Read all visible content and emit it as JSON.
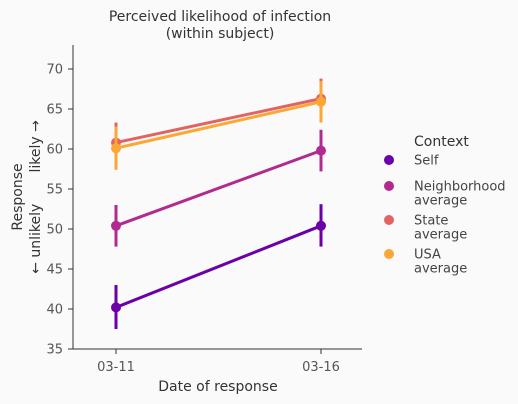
{
  "chart_data": {
    "type": "line",
    "title_lines": [
      "Perceived likelihood of infection",
      "(within subject)"
    ],
    "xlabel": "Date of response",
    "ylabel_lines": [
      "Response",
      "← unlikely       likely →"
    ],
    "categories": [
      "03-11",
      "03-16"
    ],
    "ylim": [
      35,
      73
    ],
    "yticks": [
      35,
      40,
      45,
      50,
      55,
      60,
      65,
      70
    ],
    "grid": false,
    "legend_title": "Context",
    "legend_position": "right",
    "series": [
      {
        "name": "Self",
        "label_lines": [
          "Self"
        ],
        "color": "#6a00a8",
        "values": [
          40.2,
          50.4
        ],
        "ci_low": [
          37.5,
          47.8
        ],
        "ci_high": [
          43.0,
          53.1
        ]
      },
      {
        "name": "Neighborhood average",
        "label_lines": [
          "Neighborhood",
          "average"
        ],
        "color": "#b12a90",
        "values": [
          50.4,
          59.8
        ],
        "ci_low": [
          47.8,
          57.2
        ],
        "ci_high": [
          53.0,
          62.4
        ]
      },
      {
        "name": "State average",
        "label_lines": [
          "State",
          "average"
        ],
        "color": "#e16462",
        "values": [
          60.8,
          66.3
        ],
        "ci_low": [
          58.3,
          63.8
        ],
        "ci_high": [
          63.3,
          68.8
        ]
      },
      {
        "name": "USA average",
        "label_lines": [
          "USA",
          "average"
        ],
        "color": "#fca636",
        "values": [
          60.1,
          65.9
        ],
        "ci_low": [
          57.4,
          63.3
        ],
        "ci_high": [
          62.8,
          68.5
        ]
      }
    ]
  }
}
